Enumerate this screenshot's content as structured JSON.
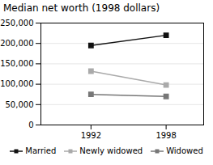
{
  "chart_data": {
    "type": "line",
    "title": "Median net worth (1998 dollars)",
    "x": [
      1992,
      1998
    ],
    "series": [
      {
        "name": "Married",
        "color": "#111111",
        "marker": "square",
        "values": [
          195000,
          220000
        ]
      },
      {
        "name": "Newly widowed",
        "color": "#aaaaaa",
        "marker": "square",
        "values": [
          132000,
          98000
        ]
      },
      {
        "name": "Widowed",
        "color": "#777777",
        "marker": "square",
        "values": [
          75000,
          70000
        ]
      }
    ],
    "xlim": [
      1988,
      2001
    ],
    "xticks": [
      1992,
      1998
    ],
    "ylim": [
      0,
      250000
    ],
    "yticks": [
      0,
      {
        "value": 50000,
        "label": "50,000"
      },
      {
        "value": 100000,
        "label": "100,000"
      },
      {
        "value": 150000,
        "label": "150,000"
      },
      {
        "value": 200000,
        "label": "200,000"
      },
      {
        "value": 250000,
        "label": "250,000"
      }
    ],
    "grid": true,
    "legend": "bottom"
  }
}
